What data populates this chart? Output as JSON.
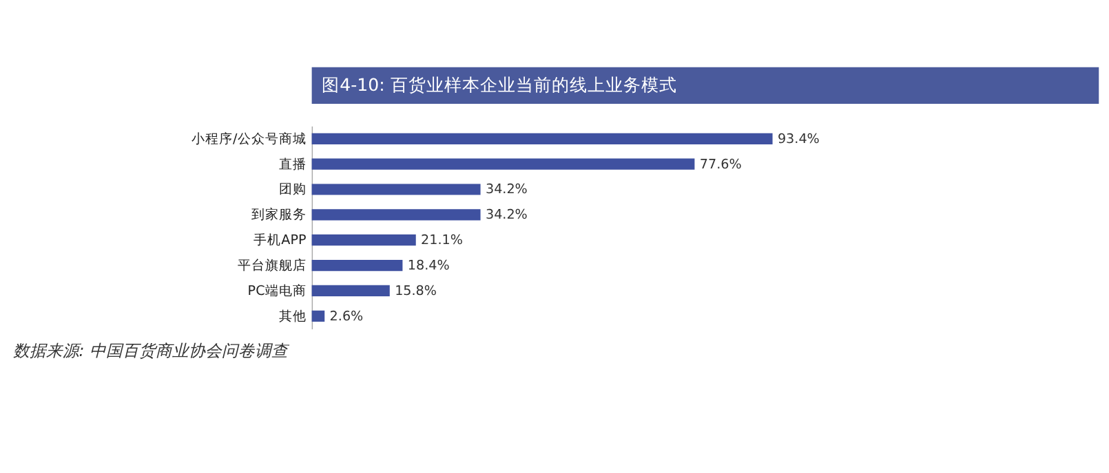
{
  "chart_data": {
    "type": "bar",
    "orientation": "horizontal",
    "title": "图4-10: 百货业样本企业当前的线上业务模式",
    "categories": [
      "小程序/公众号商城",
      "直播",
      "团购",
      "到家服务",
      "手机APP",
      "平台旗舰店",
      "PC端电商",
      "其他"
    ],
    "values": [
      93.4,
      77.6,
      34.2,
      34.2,
      21.1,
      18.4,
      15.8,
      2.6
    ],
    "value_labels": [
      "93.4%",
      "77.6%",
      "34.2%",
      "34.2%",
      "21.1%",
      "18.4%",
      "15.8%",
      "2.6%"
    ],
    "color": "#3f51a0",
    "annotations": [
      "数据来源: 中国百货商业协会问卷调查"
    ]
  }
}
